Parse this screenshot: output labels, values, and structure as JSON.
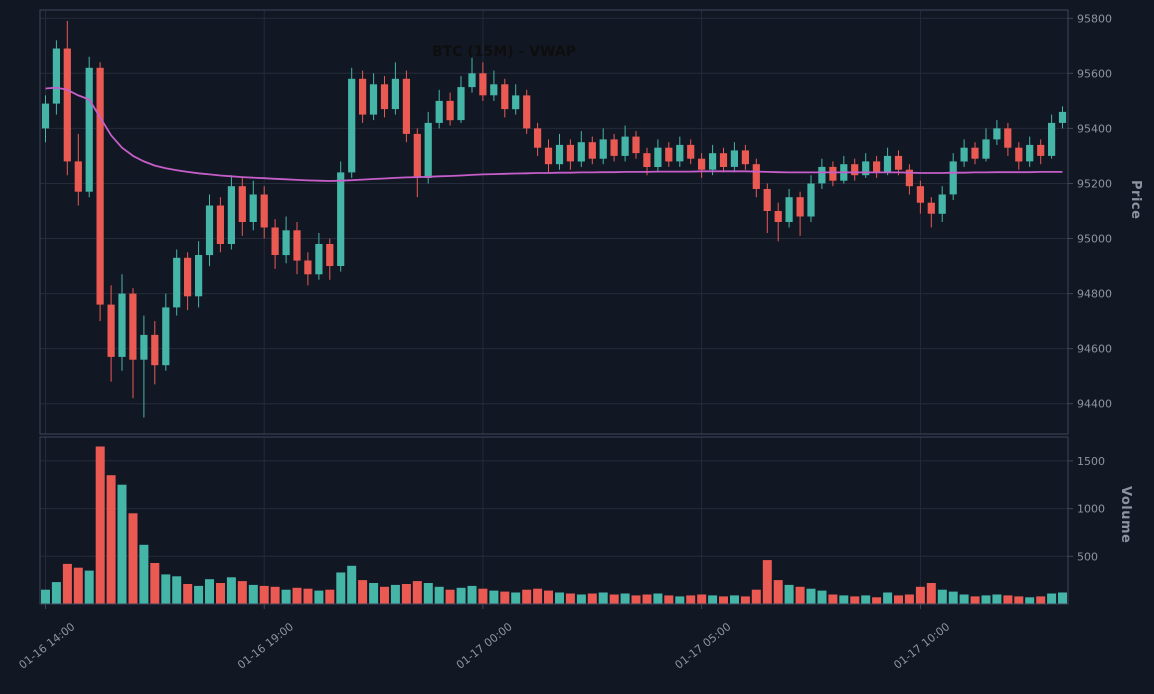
{
  "chart_data": {
    "type": "candlestick",
    "title": "BTC (15M) - VWAP",
    "grid": true,
    "legend": "none",
    "x_tick_labels": [
      {
        "index": 0,
        "label": "01-16 14:00"
      },
      {
        "index": 20,
        "label": "01-16 19:00"
      },
      {
        "index": 40,
        "label": "01-17 00:00"
      },
      {
        "index": 60,
        "label": "01-17 05:00"
      },
      {
        "index": 80,
        "label": "01-17 10:00"
      }
    ],
    "price_axis": {
      "label": "Price",
      "ticks": [
        94400,
        94600,
        94800,
        95000,
        95200,
        95400,
        95600,
        95800
      ],
      "range": [
        94290,
        95830
      ]
    },
    "volume_axis": {
      "label": "Volume",
      "ticks": [
        500,
        1000,
        1500
      ],
      "range": [
        0,
        1750
      ]
    },
    "ohlcv": [
      [
        95400,
        95520,
        95350,
        95490,
        150
      ],
      [
        95490,
        95720,
        95450,
        95690,
        230
      ],
      [
        95690,
        95790,
        95230,
        95280,
        420
      ],
      [
        95280,
        95380,
        95120,
        95170,
        380
      ],
      [
        95170,
        95660,
        95150,
        95620,
        350
      ],
      [
        95620,
        95640,
        94700,
        94760,
        1650
      ],
      [
        94760,
        94830,
        94480,
        94570,
        1350
      ],
      [
        94570,
        94870,
        94520,
        94800,
        1250
      ],
      [
        94800,
        94820,
        94420,
        94560,
        950
      ],
      [
        94560,
        94720,
        94350,
        94650,
        620
      ],
      [
        94650,
        94700,
        94470,
        94540,
        430
      ],
      [
        94540,
        94800,
        94520,
        94750,
        310
      ],
      [
        94750,
        94960,
        94720,
        94930,
        290
      ],
      [
        94930,
        94950,
        94740,
        94790,
        210
      ],
      [
        94790,
        94990,
        94750,
        94940,
        190
      ],
      [
        94940,
        95160,
        94900,
        95120,
        260
      ],
      [
        95120,
        95150,
        94950,
        94980,
        220
      ],
      [
        94980,
        95230,
        94960,
        95190,
        280
      ],
      [
        95190,
        95220,
        95010,
        95060,
        240
      ],
      [
        95060,
        95210,
        95030,
        95160,
        200
      ],
      [
        95160,
        95190,
        95000,
        95040,
        190
      ],
      [
        95040,
        95070,
        94890,
        94940,
        180
      ],
      [
        94940,
        95080,
        94910,
        95030,
        150
      ],
      [
        95030,
        95060,
        94870,
        94920,
        170
      ],
      [
        94920,
        94950,
        94830,
        94870,
        160
      ],
      [
        94870,
        95020,
        94850,
        94980,
        140
      ],
      [
        94980,
        95000,
        94850,
        94900,
        150
      ],
      [
        94900,
        95280,
        94880,
        95240,
        330
      ],
      [
        95240,
        95620,
        95220,
        95580,
        400
      ],
      [
        95580,
        95610,
        95420,
        95450,
        250
      ],
      [
        95450,
        95600,
        95430,
        95560,
        220
      ],
      [
        95560,
        95590,
        95440,
        95470,
        180
      ],
      [
        95470,
        95640,
        95450,
        95580,
        200
      ],
      [
        95580,
        95610,
        95350,
        95380,
        210
      ],
      [
        95380,
        95400,
        95150,
        95220,
        240
      ],
      [
        95220,
        95460,
        95200,
        95420,
        220
      ],
      [
        95420,
        95540,
        95400,
        95500,
        180
      ],
      [
        95500,
        95530,
        95410,
        95430,
        150
      ],
      [
        95430,
        95590,
        95420,
        95550,
        170
      ],
      [
        95550,
        95660,
        95530,
        95600,
        190
      ],
      [
        95600,
        95640,
        95500,
        95520,
        160
      ],
      [
        95520,
        95610,
        95500,
        95560,
        140
      ],
      [
        95560,
        95580,
        95440,
        95470,
        130
      ],
      [
        95470,
        95560,
        95450,
        95520,
        120
      ],
      [
        95520,
        95540,
        95380,
        95400,
        150
      ],
      [
        95400,
        95420,
        95300,
        95330,
        160
      ],
      [
        95330,
        95360,
        95240,
        95270,
        140
      ],
      [
        95270,
        95380,
        95250,
        95340,
        120
      ],
      [
        95340,
        95360,
        95250,
        95280,
        110
      ],
      [
        95280,
        95390,
        95260,
        95350,
        100
      ],
      [
        95350,
        95370,
        95270,
        95290,
        110
      ],
      [
        95290,
        95400,
        95270,
        95360,
        120
      ],
      [
        95360,
        95380,
        95280,
        95300,
        100
      ],
      [
        95300,
        95410,
        95280,
        95370,
        110
      ],
      [
        95370,
        95390,
        95290,
        95310,
        90
      ],
      [
        95310,
        95330,
        95230,
        95260,
        100
      ],
      [
        95260,
        95360,
        95240,
        95330,
        110
      ],
      [
        95330,
        95350,
        95260,
        95280,
        90
      ],
      [
        95280,
        95370,
        95260,
        95340,
        80
      ],
      [
        95340,
        95360,
        95270,
        95290,
        90
      ],
      [
        95290,
        95310,
        95220,
        95250,
        100
      ],
      [
        95250,
        95340,
        95230,
        95310,
        90
      ],
      [
        95310,
        95330,
        95240,
        95260,
        80
      ],
      [
        95260,
        95350,
        95240,
        95320,
        90
      ],
      [
        95320,
        95340,
        95250,
        95270,
        80
      ],
      [
        95270,
        95290,
        95150,
        95180,
        150
      ],
      [
        95180,
        95200,
        95020,
        95100,
        460
      ],
      [
        95100,
        95130,
        94990,
        95060,
        250
      ],
      [
        95060,
        95180,
        95040,
        95150,
        200
      ],
      [
        95150,
        95170,
        95010,
        95080,
        180
      ],
      [
        95080,
        95230,
        95060,
        95200,
        160
      ],
      [
        95200,
        95290,
        95180,
        95260,
        140
      ],
      [
        95260,
        95280,
        95190,
        95210,
        100
      ],
      [
        95210,
        95300,
        95200,
        95270,
        90
      ],
      [
        95270,
        95290,
        95210,
        95230,
        80
      ],
      [
        95230,
        95310,
        95220,
        95280,
        90
      ],
      [
        95280,
        95300,
        95220,
        95240,
        70
      ],
      [
        95240,
        95330,
        95230,
        95300,
        120
      ],
      [
        95300,
        95320,
        95230,
        95250,
        90
      ],
      [
        95250,
        95270,
        95160,
        95190,
        100
      ],
      [
        95190,
        95210,
        95090,
        95130,
        180
      ],
      [
        95130,
        95150,
        95040,
        95090,
        220
      ],
      [
        95090,
        95190,
        95060,
        95160,
        150
      ],
      [
        95160,
        95310,
        95140,
        95280,
        130
      ],
      [
        95280,
        95360,
        95260,
        95330,
        100
      ],
      [
        95330,
        95350,
        95270,
        95290,
        80
      ],
      [
        95290,
        95400,
        95280,
        95360,
        90
      ],
      [
        95360,
        95430,
        95340,
        95400,
        100
      ],
      [
        95400,
        95420,
        95300,
        95330,
        90
      ],
      [
        95330,
        95350,
        95250,
        95280,
        80
      ],
      [
        95280,
        95370,
        95260,
        95340,
        70
      ],
      [
        95340,
        95360,
        95270,
        95300,
        80
      ],
      [
        95300,
        95450,
        95290,
        95420,
        110
      ],
      [
        95420,
        95480,
        95400,
        95460,
        120
      ]
    ],
    "vwap": [
      95545,
      95548,
      95540,
      95520,
      95505,
      95440,
      95375,
      95330,
      95300,
      95280,
      95265,
      95255,
      95248,
      95242,
      95237,
      95233,
      95229,
      95226,
      95223,
      95221,
      95219,
      95217,
      95215,
      95213,
      95211,
      95210,
      95209,
      95210,
      95212,
      95214,
      95216,
      95218,
      95220,
      95222,
      95223,
      95224,
      95226,
      95227,
      95229,
      95231,
      95233,
      95234,
      95235,
      95236,
      95237,
      95238,
      95238,
      95239,
      95239,
      95240,
      95240,
      95241,
      95241,
      95242,
      95242,
      95242,
      95243,
      95243,
      95243,
      95243,
      95244,
      95244,
      95244,
      95244,
      95244,
      95243,
      95242,
      95241,
      95240,
      95240,
      95240,
      95240,
      95240,
      95240,
      95240,
      95240,
      95240,
      95240,
      95240,
      95239,
      95238,
      95238,
      95238,
      95239,
      95239,
      95240,
      95240,
      95241,
      95241,
      95241,
      95241,
      95242,
      95242,
      95242
    ],
    "colors": {
      "background": "#121724",
      "up": "#45b5a8",
      "down": "#eb5a52",
      "vwap": "#c55ec9",
      "grid": "#252b3a",
      "spine": "#3e465a",
      "tick_text": "#8e94a0",
      "axis_label_text": "#8d93a0",
      "title_text": "#0e0e0e"
    }
  }
}
